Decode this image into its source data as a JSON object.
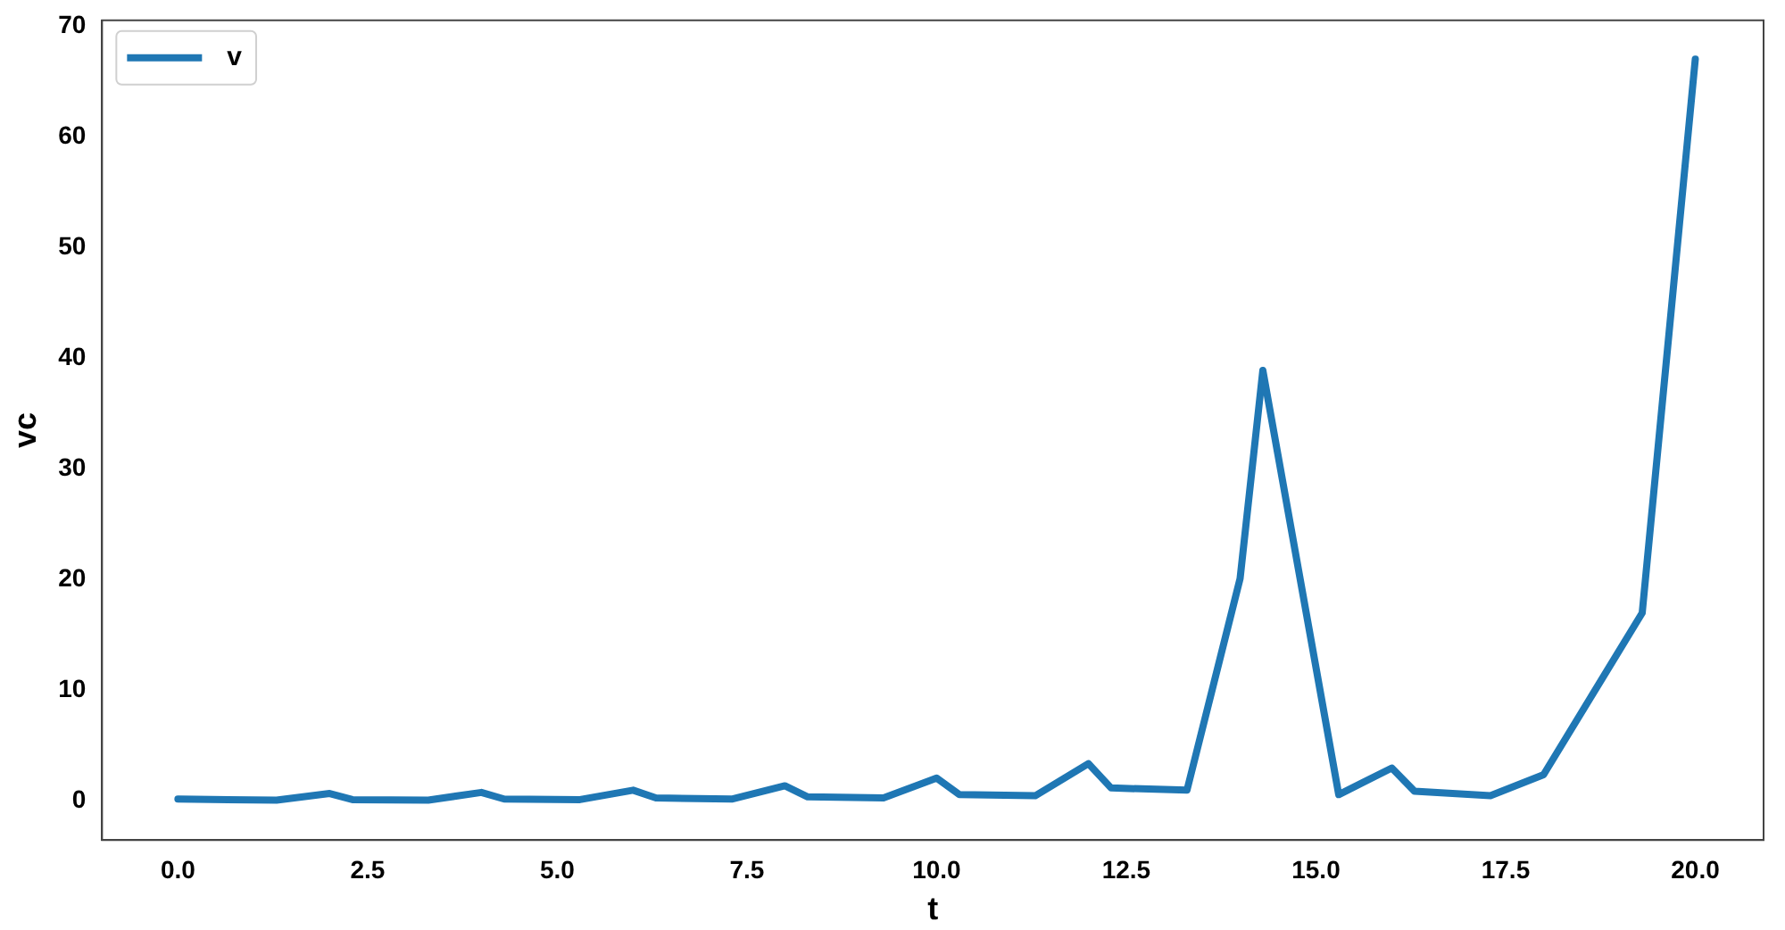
{
  "chart_data": {
    "type": "line",
    "xlabel": "t",
    "ylabel": "vc",
    "x": [
      0,
      1.3,
      2,
      2.3,
      3.3,
      4,
      4.3,
      5.3,
      6,
      6.3,
      7.3,
      8,
      8.3,
      9.3,
      10,
      10.3,
      11.3,
      12,
      12.3,
      13.3,
      14,
      14.3,
      15.3,
      16,
      16.3,
      17.3,
      18,
      19.3,
      20
    ],
    "series": [
      {
        "name": "v",
        "color": "#1f77b4",
        "values": [
          0.2,
          0.1,
          0.7,
          0.15,
          0.1,
          0.8,
          0.2,
          0.15,
          1.0,
          0.3,
          0.2,
          1.4,
          0.4,
          0.3,
          2.1,
          0.6,
          0.5,
          3.4,
          1.2,
          1.0,
          20.1,
          38.9,
          0.6,
          3.0,
          0.9,
          0.5,
          2.4,
          17.0,
          67
        ]
      }
    ],
    "xlim": [
      -1,
      20.9
    ],
    "xticks": [
      {
        "value": 0,
        "label": "0.0"
      },
      {
        "value": 2.5,
        "label": "2.5"
      },
      {
        "value": 5,
        "label": "5.0"
      },
      {
        "value": 7.5,
        "label": "7.5"
      },
      {
        "value": 10,
        "label": "10.0"
      },
      {
        "value": 12.5,
        "label": "12.5"
      },
      {
        "value": 15,
        "label": "15.0"
      },
      {
        "value": 17.5,
        "label": "17.5"
      },
      {
        "value": 20,
        "label": "20.0"
      }
    ],
    "ylim": [
      -3.5,
      70.5
    ],
    "yticks": [
      0,
      10,
      20,
      30,
      40,
      50,
      60,
      70
    ],
    "grid": false,
    "legend": "top left",
    "marker": "none",
    "line_style": "solid"
  }
}
